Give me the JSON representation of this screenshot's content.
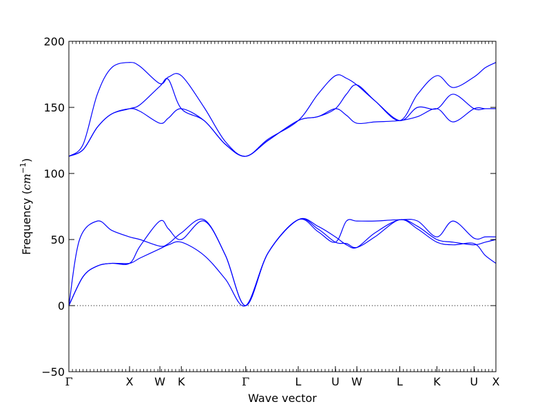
{
  "chart_data": {
    "type": "line",
    "title": "",
    "xlabel": "Wave vector",
    "ylabel": {
      "prefix": "Frequency (",
      "unit_base": "cm",
      "unit_exp": "−1",
      "suffix": ")"
    },
    "ylim": [
      -50,
      200
    ],
    "yticks": [
      {
        "value": -50,
        "label": "−50"
      },
      {
        "value": 0,
        "label": "0"
      },
      {
        "value": 50,
        "label": "50"
      },
      {
        "value": 100,
        "label": "100"
      },
      {
        "value": 150,
        "label": "150"
      },
      {
        "value": 200,
        "label": "200"
      }
    ],
    "xlim": [
      0,
      6.0
    ],
    "high_symmetry_points": [
      {
        "label": "Γ",
        "x": 0.0
      },
      {
        "label": "X",
        "x": 0.8524
      },
      {
        "label": "W",
        "x": 1.2787
      },
      {
        "label": "K",
        "x": 1.5801
      },
      {
        "label": "Γ",
        "x": 2.4844
      },
      {
        "label": "L",
        "x": 3.2227
      },
      {
        "label": "U",
        "x": 3.7447
      },
      {
        "label": "W",
        "x": 4.0461
      },
      {
        "label": "L",
        "x": 4.6489
      },
      {
        "label": "K",
        "x": 5.1709
      },
      {
        "label": "U",
        "x": 5.6929
      },
      {
        "label": "X",
        "x": 6.0
      }
    ],
    "reference_line": {
      "y": 0,
      "style": "dotted"
    },
    "line_color": "#0000ff",
    "grid": false,
    "series": [
      {
        "x": [
          0.0,
          0.2,
          0.4,
          0.6,
          0.8524,
          1.0,
          1.2787,
          1.4,
          1.5801,
          1.9,
          2.2,
          2.4844,
          2.8,
          3.2227,
          3.5,
          3.7447,
          3.9,
          4.0461,
          4.3,
          4.6489,
          4.9,
          5.1709,
          5.4,
          5.6929,
          5.85,
          6.0
        ],
        "y": [
          0,
          22,
          30,
          32,
          32,
          36,
          43,
          46,
          48,
          38,
          20,
          0,
          40,
          65,
          58,
          48,
          47,
          44,
          52,
          65,
          58,
          48,
          46,
          47,
          38,
          32
        ]
      },
      {
        "x": [
          0.0,
          0.2,
          0.4,
          0.6,
          0.8524,
          1.0,
          1.2787,
          1.4,
          1.5801,
          1.9,
          2.2,
          2.4844,
          2.8,
          3.2227,
          3.5,
          3.7447,
          3.9,
          4.0461,
          4.3,
          4.6489,
          4.9,
          5.1709,
          5.4,
          5.6929,
          5.85,
          6.0
        ],
        "y": [
          0,
          22,
          30,
          32,
          32,
          45,
          64,
          58,
          50,
          64,
          38,
          0,
          40,
          65,
          60,
          52,
          46,
          44,
          55,
          65,
          60,
          50,
          48,
          46,
          48,
          50
        ]
      },
      {
        "x": [
          0.0,
          0.15,
          0.4,
          0.6,
          0.8524,
          1.0,
          1.2787,
          1.4,
          1.5801,
          1.9,
          2.2,
          2.4844,
          2.8,
          3.2227,
          3.5,
          3.7447,
          3.9,
          4.0461,
          4.3,
          4.6489,
          4.9,
          5.1709,
          5.4,
          5.6929,
          5.85,
          6.0
        ],
        "y": [
          0,
          50,
          64,
          57,
          52,
          50,
          45,
          47,
          55,
          65,
          38,
          0,
          40,
          65,
          56,
          48,
          64,
          64,
          64,
          65,
          64,
          52,
          64,
          51,
          52,
          52
        ]
      },
      {
        "x": [
          0.0,
          0.2,
          0.4,
          0.6,
          0.8524,
          1.0,
          1.2787,
          1.4,
          1.5801,
          1.9,
          2.2,
          2.4844,
          2.8,
          3.2227,
          3.5,
          3.7447,
          3.9,
          4.0461,
          4.3,
          4.6489,
          4.9,
          5.1709,
          5.4,
          5.6929,
          5.85,
          6.0
        ],
        "y": [
          113,
          118,
          135,
          145,
          149,
          147,
          138,
          142,
          149,
          140,
          122,
          113,
          125,
          140,
          143,
          149,
          144,
          138,
          139,
          140,
          143,
          149,
          139,
          149,
          149,
          149
        ]
      },
      {
        "x": [
          0.0,
          0.2,
          0.4,
          0.6,
          0.8524,
          1.0,
          1.2787,
          1.4,
          1.5801,
          1.9,
          2.2,
          2.4844,
          2.8,
          3.2227,
          3.5,
          3.7447,
          3.9,
          4.0461,
          4.3,
          4.6489,
          4.9,
          5.1709,
          5.4,
          5.6929,
          5.85,
          6.0
        ],
        "y": [
          113,
          118,
          135,
          145,
          149,
          152,
          166,
          171,
          149,
          140,
          122,
          113,
          125,
          140,
          143,
          149,
          160,
          167,
          155,
          140,
          150,
          149,
          160,
          149,
          149,
          149
        ]
      },
      {
        "x": [
          0.0,
          0.2,
          0.4,
          0.6,
          0.8524,
          1.0,
          1.2787,
          1.4,
          1.5801,
          1.9,
          2.2,
          2.4844,
          2.8,
          3.2227,
          3.5,
          3.7447,
          3.9,
          4.0461,
          4.3,
          4.6489,
          4.9,
          5.1709,
          5.4,
          5.6929,
          5.85,
          6.0
        ],
        "y": [
          113,
          122,
          160,
          180,
          184,
          181,
          168,
          173,
          174,
          150,
          124,
          113,
          126,
          140,
          160,
          174,
          172,
          167,
          155,
          140,
          160,
          174,
          165,
          173,
          180,
          184
        ]
      }
    ]
  }
}
